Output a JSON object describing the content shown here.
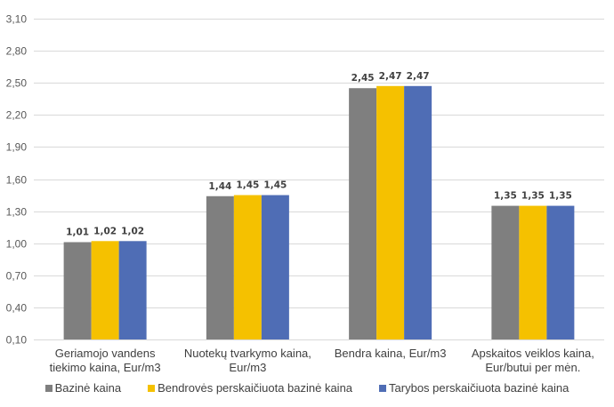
{
  "chart_data": {
    "type": "bar",
    "title": "",
    "xlabel": "",
    "ylabel": "",
    "ylim": [
      0.1,
      3.1
    ],
    "yticks": [
      "0,10",
      "0,40",
      "0,70",
      "1,00",
      "1,30",
      "1,60",
      "1,90",
      "2,20",
      "2,50",
      "2,80",
      "3,10"
    ],
    "ytick_values": [
      0.1,
      0.4,
      0.7,
      1.0,
      1.3,
      1.6,
      1.9,
      2.2,
      2.5,
      2.8,
      3.1
    ],
    "grid": true,
    "legend_position": "bottom",
    "categories": [
      [
        "Geriamojo vandens",
        "tiekimo kaina, Eur/m3"
      ],
      [
        "Nuotekų tvarkymo kaina,",
        "Eur/m3"
      ],
      [
        "Bendra kaina, Eur/m3"
      ],
      [
        "Apskaitos veiklos kaina,",
        "Eur/butui per mėn."
      ]
    ],
    "series": [
      {
        "name": "Bazinė kaina",
        "color": "#7f7f7f",
        "values": [
          1.01,
          1.44,
          2.45,
          1.35
        ],
        "labels": [
          "1,01",
          "1,44",
          "2,45",
          "1,35"
        ]
      },
      {
        "name": "Bendrovės perskaičiuota bazinė kaina",
        "color": "#f5c100",
        "values": [
          1.02,
          1.45,
          2.47,
          1.35
        ],
        "labels": [
          "1,02",
          "1,45",
          "2,47",
          "1,35"
        ]
      },
      {
        "name": "Tarybos perskaičiuota bazinė kaina",
        "color": "#4f6db5",
        "values": [
          1.02,
          1.45,
          2.47,
          1.35
        ],
        "labels": [
          "1,02",
          "1,45",
          "2,47",
          "1,35"
        ]
      }
    ]
  }
}
